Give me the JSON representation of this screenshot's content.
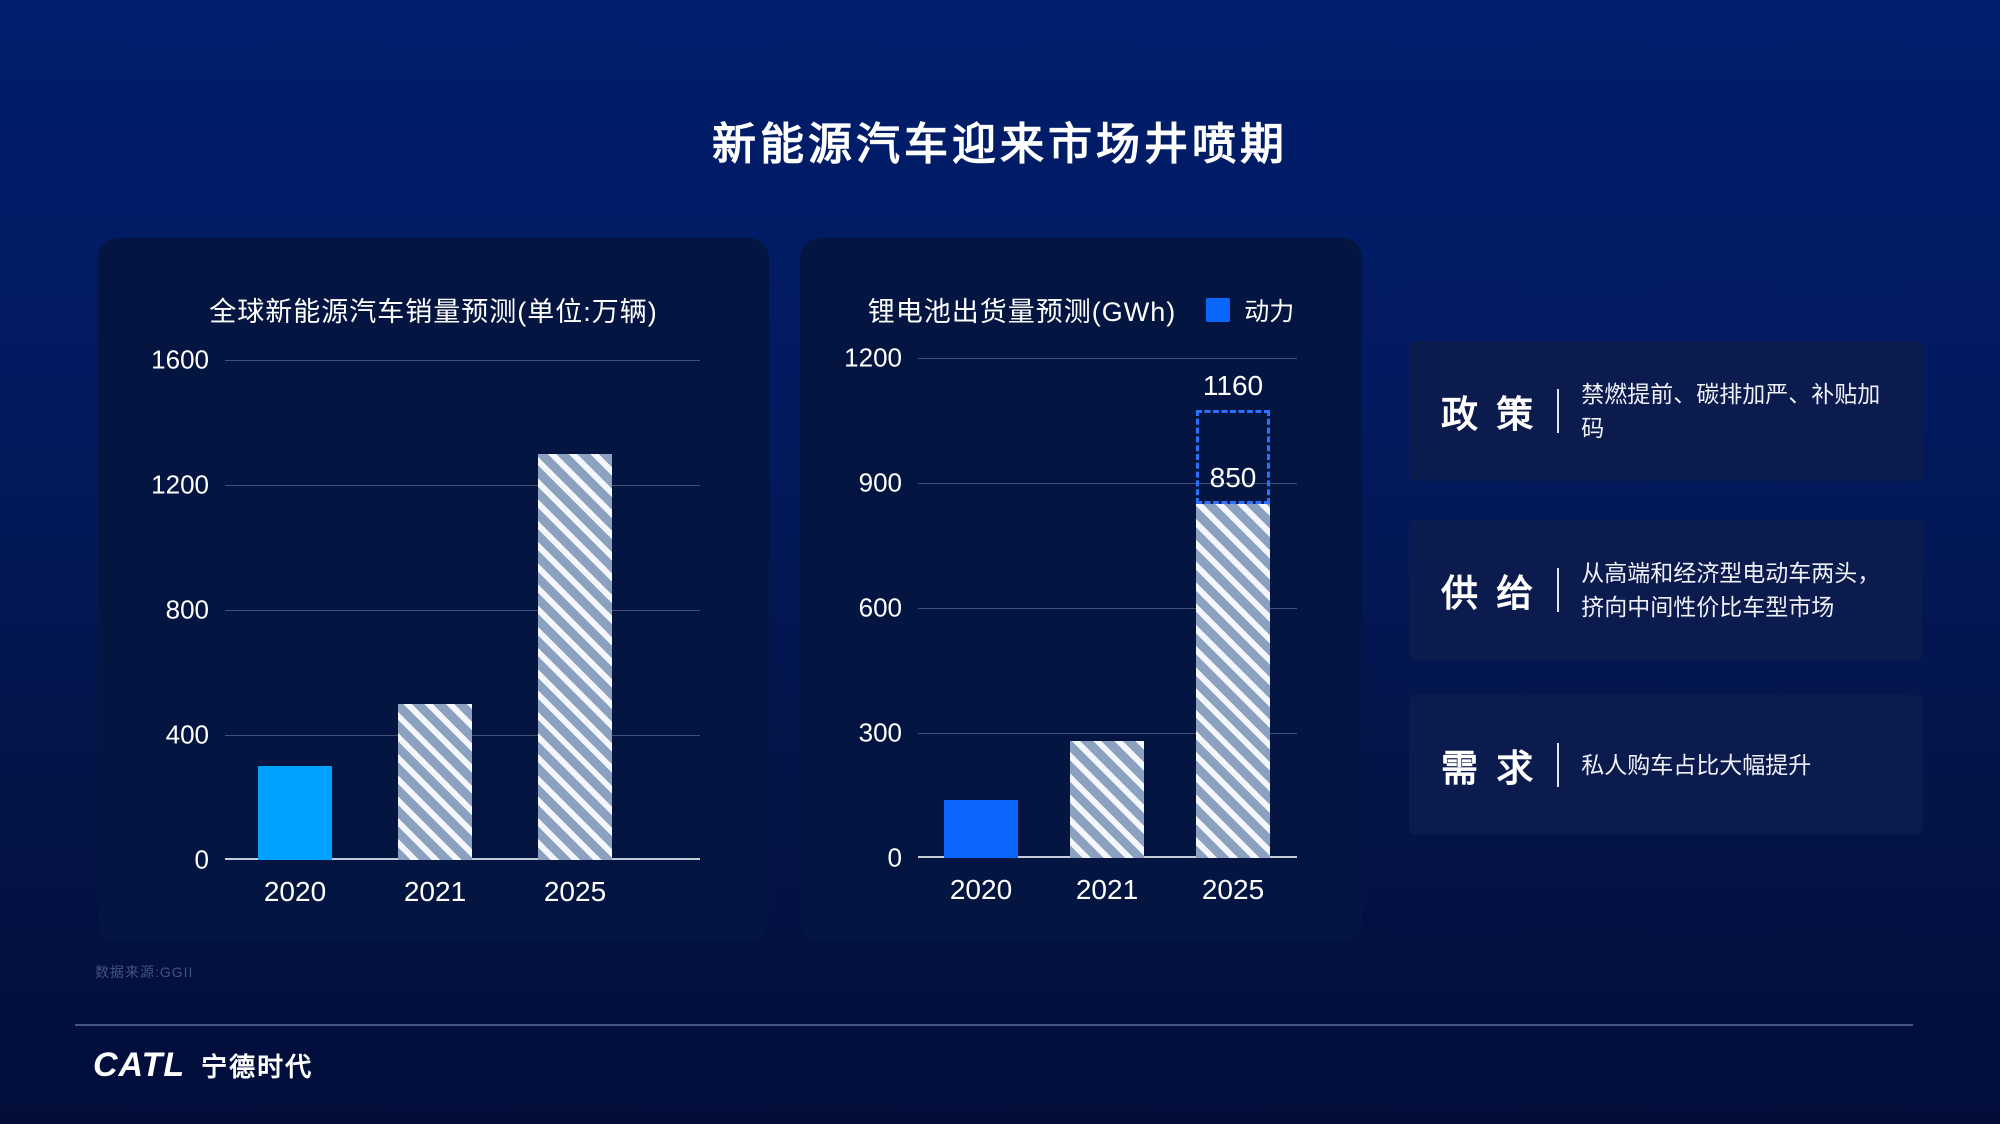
{
  "slide": {
    "title": "新能源汽车迎来市场井喷期",
    "source": "数据来源:GGII",
    "logo_latin": "CATL",
    "logo_chinese": "宁德时代"
  },
  "colors": {
    "accent_sky": "#00a2ff",
    "accent_blue": "#0a66fc",
    "hatch_base": "#8ca0c0",
    "hatch_stripe": "#f3f6fb",
    "projection_dash": "#2d6ffe"
  },
  "chart_data": [
    {
      "type": "bar",
      "title": "全球新能源汽车销量预测(单位:万辆)",
      "categories": [
        "2020",
        "2021",
        "2025"
      ],
      "values": [
        300,
        500,
        1300
      ],
      "bar_styles": [
        "solid",
        "hatch",
        "hatch"
      ],
      "solid_color": "#00a2ff",
      "ylim": [
        0,
        1600
      ],
      "yticks": [
        0,
        400,
        800,
        1200,
        1600
      ],
      "grid": true,
      "xlabel": "",
      "ylabel": ""
    },
    {
      "type": "bar",
      "title": "锂电池出货量预测(GWh)",
      "legend": [
        {
          "label": "动力",
          "color": "#0a66fc"
        }
      ],
      "categories": [
        "2020",
        "2021",
        "2025"
      ],
      "values": [
        140,
        280,
        850
      ],
      "bar_styles": [
        "solid",
        "hatch",
        "hatch"
      ],
      "solid_color": "#0a66fc",
      "ylim": [
        0,
        1200
      ],
      "yticks": [
        0,
        300,
        600,
        900,
        1200
      ],
      "grid": true,
      "xlabel": "",
      "ylabel": "",
      "annotations": {
        "bar_index": 2,
        "bar_value_label": "850",
        "projection_label": "1160",
        "projection_value": 1160
      }
    }
  ],
  "insights": [
    {
      "title": "政 策",
      "desc": "禁燃提前、碳排加严、补贴加码"
    },
    {
      "title": "供 给",
      "desc": "从高端和经济型电动车两头，\n挤向中间性价比车型市场"
    },
    {
      "title": "需 求",
      "desc": "私人购车占比大幅提升"
    }
  ]
}
